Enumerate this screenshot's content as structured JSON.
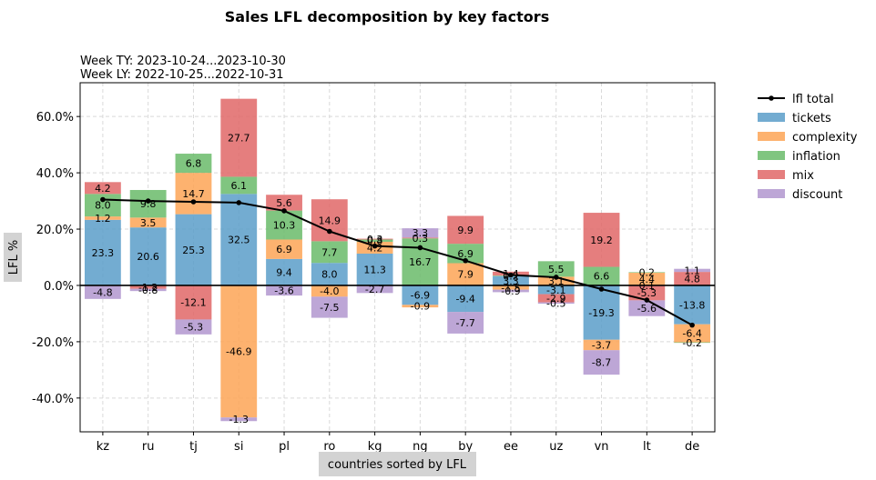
{
  "chart_data": {
    "type": "bar",
    "stacked": true,
    "title": "Sales LFL decomposition by key factors",
    "subtitle_lines": [
      "Week TY: 2023-10-24...2023-10-30",
      "Week LY: 2022-10-25...2022-10-31"
    ],
    "xlabel": "countries sorted by LFL",
    "ylabel": "LFL %",
    "ylim": [
      -52,
      72
    ],
    "yticks": [
      -40,
      -20,
      0,
      20,
      40,
      60
    ],
    "ytick_labels": [
      "-40.0%",
      "-20.0%",
      "0.0%",
      "20.0%",
      "40.0%",
      "60.0%"
    ],
    "grid": true,
    "legend_position": "outside-right",
    "categories": [
      "kz",
      "ru",
      "tj",
      "si",
      "pl",
      "ro",
      "kg",
      "ng",
      "by",
      "ee",
      "uz",
      "vn",
      "lt",
      "de"
    ],
    "series": [
      {
        "name": "tickets",
        "color": "#5b9ec9",
        "values": [
          23.3,
          20.6,
          25.3,
          32.5,
          9.4,
          8.0,
          11.3,
          -6.9,
          -9.4,
          3.3,
          -3.1,
          -19.3,
          0.1,
          -13.8
        ],
        "labels": [
          "23.3",
          "20.6",
          "25.3",
          "32.5",
          "9.4",
          "8.0",
          "11.3",
          "-6.9",
          "-9.4",
          "3.3",
          "-3.1",
          "-19.3",
          "0.1",
          "-13.8"
        ]
      },
      {
        "name": "complexity",
        "color": "#fda556",
        "values": [
          1.2,
          3.5,
          14.7,
          -46.9,
          6.9,
          -4.0,
          4.2,
          -0.9,
          7.9,
          -1.5,
          3.1,
          -3.7,
          4.4,
          -6.4
        ],
        "labels": [
          "1.2",
          "3.5",
          "14.7",
          "-46.9",
          "6.9",
          "-4.0",
          "4.2",
          "-0.9",
          "7.9",
          "-1.5",
          "3.1",
          "-3.7",
          "4.4",
          "-6.4"
        ]
      },
      {
        "name": "inflation",
        "color": "#6abb6a",
        "values": [
          8.0,
          9.8,
          6.8,
          6.1,
          10.3,
          7.7,
          0.8,
          16.7,
          6.9,
          0.2,
          5.5,
          6.6,
          0.2,
          -0.2
        ],
        "labels": [
          "8.0",
          "9.8",
          "6.8",
          "6.1",
          "10.3",
          "7.7",
          "0.8",
          "16.7",
          "6.9",
          "0.2",
          "5.5",
          "6.6",
          "0.2",
          "-0.2"
        ]
      },
      {
        "name": "mix",
        "color": "#e06767",
        "values": [
          4.2,
          -1.2,
          -12.1,
          27.7,
          5.6,
          14.9,
          0.3,
          0.3,
          9.9,
          1.4,
          -2.9,
          19.2,
          -5.3,
          4.8
        ],
        "labels": [
          "4.2",
          "-1.2",
          "-12.1",
          "27.7",
          "5.6",
          "14.9",
          "0.3",
          "0.3",
          "9.9",
          "1.4",
          "-2.9",
          "19.2",
          "-5.3",
          "4.8"
        ]
      },
      {
        "name": "discount",
        "color": "#b196cf",
        "values": [
          -4.8,
          -0.8,
          -5.3,
          -1.3,
          -3.6,
          -7.5,
          -2.7,
          3.3,
          -7.7,
          -0.9,
          -0.5,
          -8.7,
          -5.6,
          1.1
        ],
        "labels": [
          "-4.8",
          "-0.8",
          "-5.3",
          "-1.3",
          "-3.6",
          "-7.5",
          "-2.7",
          "3.3",
          "-7.7",
          "-0.9",
          "-0.5",
          "-8.7",
          "-5.6",
          "1.1"
        ]
      }
    ],
    "line": {
      "name": "lfl total",
      "color": "#000000",
      "values": [
        30.5,
        30.0,
        29.7,
        29.4,
        26.5,
        19.2,
        14.0,
        13.4,
        8.8,
        3.7,
        2.9,
        -1.3,
        -5.2,
        -14.1
      ]
    }
  }
}
